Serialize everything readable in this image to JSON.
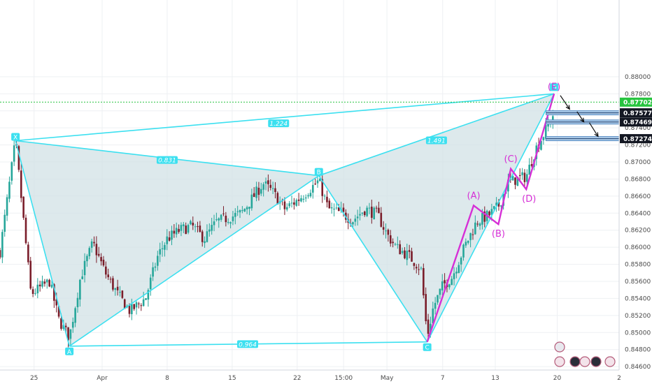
{
  "chart_data": {
    "type": "candlestick",
    "y_axis": {
      "range": [
        0.8456,
        0.889
      ],
      "ticks": [
        "0.88000",
        "0.87800",
        "0.87600",
        "0.87400",
        "0.87200",
        "0.87000",
        "0.86800",
        "0.86600",
        "0.86400",
        "0.86200",
        "0.86000",
        "0.85800",
        "0.85600",
        "0.85400",
        "0.85200",
        "0.85000",
        "0.84800",
        "0.84600"
      ]
    },
    "x_axis": {
      "range": [
        0,
        100
      ],
      "ticks": [
        {
          "label": "25",
          "x": 5.5
        },
        {
          "label": "Apr",
          "x": 16.5
        },
        {
          "label": "8",
          "x": 27
        },
        {
          "label": "15",
          "x": 37.5
        },
        {
          "label": "22",
          "x": 48
        },
        {
          "label": "15:00",
          "x": 55.5
        },
        {
          "label": "May",
          "x": 62.5
        },
        {
          "label": "7",
          "x": 71.5
        },
        {
          "label": "13",
          "x": 80
        },
        {
          "label": "20",
          "x": 90
        },
        {
          "label": "2",
          "x": 100
        }
      ]
    },
    "current_price": {
      "label": "0.87702",
      "value": 0.87702
    },
    "pattern_points": [
      {
        "label": "X",
        "x": 2.5,
        "y": 0.8725
      },
      {
        "label": "A",
        "x": 11.2,
        "y": 0.8484
      },
      {
        "label": "B",
        "x": 51.5,
        "y": 0.8684
      },
      {
        "label": "C",
        "x": 69,
        "y": 0.8489
      },
      {
        "label": "D",
        "x": 89.5,
        "y": 0.878
      }
    ],
    "ratios": [
      {
        "label": "1.224",
        "x": 45,
        "y": 0.8745
      },
      {
        "label": "0.831",
        "x": 27,
        "y": 0.8702
      },
      {
        "label": "1.491",
        "x": 70.5,
        "y": 0.8725
      },
      {
        "label": "0.964",
        "x": 40,
        "y": 0.8486
      }
    ],
    "wave_points": [
      {
        "label": "(A)",
        "x": 76.5,
        "y": 0.8649
      },
      {
        "label": "(B)",
        "x": 80.5,
        "y": 0.8627
      },
      {
        "label": "(C)",
        "x": 82.5,
        "y": 0.8692
      },
      {
        "label": "(D)",
        "x": 85,
        "y": 0.8668
      },
      {
        "label": "(E)",
        "x": 89.5,
        "y": 0.878
      }
    ],
    "target_levels": [
      {
        "label": "0.87577",
        "value": 0.87577
      },
      {
        "label": "0.87469",
        "value": 0.87469
      },
      {
        "label": "0.87274",
        "value": 0.87274
      }
    ],
    "candle_path": [
      [
        0,
        0.8595
      ],
      [
        2.5,
        0.8725
      ],
      [
        5,
        0.8545
      ],
      [
        8,
        0.856
      ],
      [
        9.5,
        0.8515
      ],
      [
        11.2,
        0.8494
      ],
      [
        13,
        0.8565
      ],
      [
        15,
        0.8605
      ],
      [
        17,
        0.857
      ],
      [
        19,
        0.8545
      ],
      [
        21,
        0.8525
      ],
      [
        23.5,
        0.854
      ],
      [
        25.5,
        0.859
      ],
      [
        27,
        0.861
      ],
      [
        29,
        0.862
      ],
      [
        31,
        0.8625
      ],
      [
        33,
        0.861
      ],
      [
        35,
        0.863
      ],
      [
        37,
        0.8635
      ],
      [
        39,
        0.864
      ],
      [
        41,
        0.866
      ],
      [
        42.5,
        0.8675
      ],
      [
        44,
        0.8665
      ],
      [
        46,
        0.8645
      ],
      [
        48,
        0.8655
      ],
      [
        50,
        0.8668
      ],
      [
        51.5,
        0.8678
      ],
      [
        53,
        0.8645
      ],
      [
        55,
        0.864
      ],
      [
        57,
        0.8632
      ],
      [
        59,
        0.8645
      ],
      [
        61,
        0.8638
      ],
      [
        62.5,
        0.8615
      ],
      [
        64,
        0.86
      ],
      [
        66,
        0.859
      ],
      [
        68,
        0.8575
      ],
      [
        69,
        0.8495
      ],
      [
        70,
        0.853
      ],
      [
        71.5,
        0.8555
      ],
      [
        73,
        0.8565
      ],
      [
        75,
        0.86
      ],
      [
        77,
        0.863
      ],
      [
        79,
        0.8638
      ],
      [
        80.5,
        0.8648
      ],
      [
        82,
        0.8675
      ],
      [
        83.5,
        0.868
      ],
      [
        85,
        0.8683
      ],
      [
        86.5,
        0.8715
      ],
      [
        88,
        0.8735
      ],
      [
        89.5,
        0.8758
      ]
    ],
    "colors": {
      "pattern": "#3ce0f0",
      "pattern_fill": "#d2e2e6",
      "wave": "#d62fd6",
      "bull": "#26a69a",
      "bear": "#7a1d2a",
      "current_price": "#27c43f",
      "target_box": "#5b8fc6",
      "price_badge": "#131722"
    }
  }
}
